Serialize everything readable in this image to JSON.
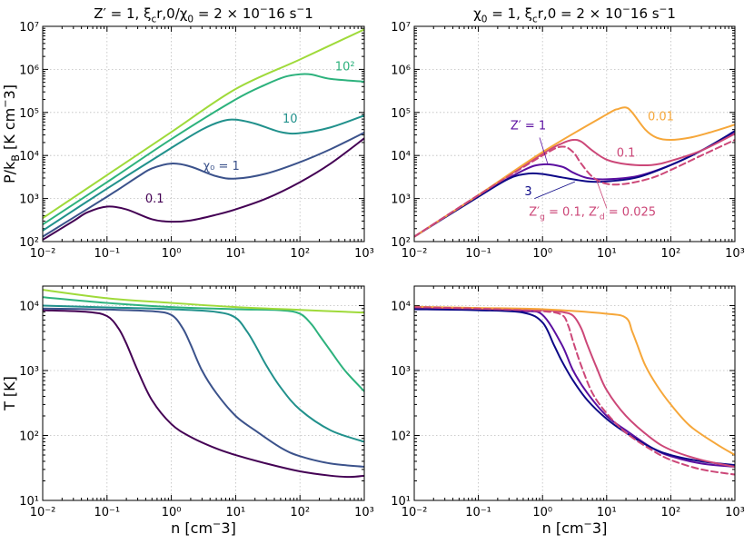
{
  "chart_data": [
    {
      "type": "line",
      "panel": "top-left",
      "title": "Z′ = 1, ξ_cr,0/χ_0 = 2 × 10^−16 s^−1",
      "ylabel": "P/k_B [K cm^−3]",
      "xlabel": "",
      "xscale": "log",
      "yscale": "log",
      "xlim": [
        0.01,
        1000
      ],
      "ylim": [
        100,
        10000000
      ],
      "grid": true,
      "series": [
        {
          "name": "χ_0 = 0.1",
          "label": "0.1",
          "color": "#440154",
          "x": [
            0.01,
            0.03,
            0.05,
            0.1,
            0.2,
            0.5,
            1,
            2,
            5,
            10,
            30,
            100,
            300,
            1000
          ],
          "y": [
            110,
            300,
            480,
            650,
            560,
            330,
            290,
            310,
            420,
            560,
            1000,
            2400,
            6500,
            25000
          ]
        },
        {
          "name": "χ_0 = 1",
          "label": "χ₀ = 1",
          "color": "#3b528b",
          "x": [
            0.01,
            0.1,
            0.3,
            0.5,
            1,
            2,
            5,
            10,
            30,
            100,
            300,
            1000
          ],
          "y": [
            130,
            1100,
            3200,
            5000,
            6500,
            5500,
            3300,
            2900,
            3800,
            7000,
            14000,
            34000
          ]
        },
        {
          "name": "χ_0 = 10",
          "label": "10",
          "color": "#21918c",
          "x": [
            0.01,
            0.1,
            1,
            3,
            6,
            10,
            20,
            50,
            100,
            300,
            1000
          ],
          "y": [
            180,
            1700,
            15000,
            40000,
            62000,
            68000,
            55000,
            35000,
            33000,
            45000,
            85000
          ]
        },
        {
          "name": "χ_0 = 10^2",
          "label": "10²",
          "color": "#2db27d",
          "x": [
            0.01,
            0.1,
            1,
            10,
            30,
            60,
            100,
            150,
            300,
            1000
          ],
          "y": [
            250,
            2400,
            24000,
            200000,
            450000,
            680000,
            770000,
            760000,
            600000,
            520000
          ]
        },
        {
          "name": "χ_0 = 10^3",
          "label": "",
          "color": "#9fda3a",
          "x": [
            0.01,
            0.1,
            1,
            10,
            100,
            1000
          ],
          "y": [
            350,
            3500,
            35000,
            350000,
            1700000,
            8500000
          ]
        }
      ],
      "annotations": [
        {
          "text": "0.1",
          "x": 0.55,
          "y": 800
        },
        {
          "text": "χ₀ = 1",
          "x": 6,
          "y": 4600
        },
        {
          "text": "10",
          "x": 70,
          "y": 58000
        },
        {
          "text": "10²",
          "x": 500,
          "y": 950000
        }
      ]
    },
    {
      "type": "line",
      "panel": "top-right",
      "title": "χ_0 = 1, ξ_cr,0 = 2 × 10^−16 s^−1",
      "ylabel": "",
      "xlabel": "",
      "xscale": "log",
      "yscale": "log",
      "xlim": [
        0.01,
        1000
      ],
      "ylim": [
        100,
        10000000
      ],
      "grid": true,
      "series": [
        {
          "name": "Z′ = 1",
          "label": "Z′ = 1",
          "color": "#5b0fa0",
          "dash": false,
          "x": [
            0.01,
            0.1,
            0.5,
            1,
            2,
            3,
            5,
            10,
            30,
            100,
            300,
            1000
          ],
          "y": [
            130,
            1150,
            4500,
            6200,
            5500,
            4000,
            3000,
            2800,
            3300,
            6000,
            13000,
            33000
          ]
        },
        {
          "name": "Z′ = 3",
          "label": "3",
          "color": "#0d0887",
          "dash": false,
          "x": [
            0.01,
            0.1,
            0.3,
            0.6,
            1,
            2,
            5,
            10,
            30,
            100,
            300,
            1000
          ],
          "y": [
            130,
            1100,
            2900,
            3800,
            3700,
            3100,
            2500,
            2500,
            3100,
            6000,
            13000,
            37000
          ]
        },
        {
          "name": "Z′ = 0.1",
          "label": "0.1",
          "color": "#cc4778",
          "dash": false,
          "x": [
            0.01,
            0.1,
            1,
            2,
            3,
            4,
            6,
            10,
            20,
            50,
            100,
            300,
            1000
          ],
          "y": [
            130,
            1200,
            11000,
            19000,
            23000,
            21000,
            13000,
            8000,
            6300,
            6000,
            7500,
            13000,
            32000
          ]
        },
        {
          "name": "Z′ = 0.01",
          "label": "0.01",
          "color": "#f6a73a",
          "dash": false,
          "x": [
            0.01,
            0.1,
            1,
            10,
            15,
            20,
            25,
            40,
            60,
            100,
            200,
            400,
            1000
          ],
          "y": [
            130,
            1200,
            12000,
            90000,
            120000,
            130000,
            100000,
            40000,
            26000,
            23000,
            26000,
            34000,
            52000
          ]
        },
        {
          "name": "Z′_g = 0.1, Z′_d = 0.025",
          "label": "Z′_g = 0.1, Z′_d = 0.025",
          "color": "#cc4778",
          "dash": true,
          "x": [
            0.01,
            0.1,
            1,
            2,
            3,
            4,
            6,
            10,
            20,
            50,
            100,
            300,
            1000
          ],
          "y": [
            130,
            1200,
            10000,
            16000,
            12000,
            6500,
            3200,
            2200,
            2200,
            3000,
            4600,
            10000,
            23000
          ]
        }
      ],
      "annotations": [
        {
          "text": "0.01",
          "x": 70,
          "y": 65000
        },
        {
          "text": "0.1",
          "x": 20,
          "y": 9500
        },
        {
          "text": "Z′ = 1",
          "x": 0.6,
          "y": 40000
        },
        {
          "text": "3",
          "x": 0.6,
          "y": 1200
        },
        {
          "text": "Z′g = 0.1, Z′d = 0.025",
          "x": 6,
          "y": 400
        }
      ]
    },
    {
      "type": "line",
      "panel": "bottom-left",
      "title": "",
      "ylabel": "T [K]",
      "xlabel": "n [cm^−3]",
      "xscale": "log",
      "yscale": "log",
      "xlim": [
        0.01,
        1000
      ],
      "ylim": [
        10,
        20000
      ],
      "grid": true,
      "series": [
        {
          "name": "χ_0 = 0.1",
          "color": "#440154",
          "x": [
            0.01,
            0.05,
            0.1,
            0.15,
            0.2,
            0.3,
            0.5,
            1,
            2,
            5,
            10,
            30,
            100,
            300,
            600,
            1000
          ],
          "y": [
            8500,
            8000,
            6900,
            4500,
            2600,
            1000,
            350,
            150,
            95,
            63,
            50,
            37,
            28,
            24,
            23,
            24
          ]
        },
        {
          "name": "χ_0 = 1",
          "color": "#3b528b",
          "x": [
            0.01,
            0.1,
            0.5,
            1,
            1.5,
            2,
            3,
            5,
            10,
            20,
            50,
            100,
            300,
            1000
          ],
          "y": [
            9000,
            8700,
            8200,
            7200,
            4500,
            2500,
            1000,
            450,
            200,
            120,
            65,
            48,
            37,
            33
          ]
        },
        {
          "name": "χ_0 = 10",
          "color": "#21918c",
          "x": [
            0.01,
            0.1,
            1,
            5,
            10,
            15,
            20,
            30,
            50,
            100,
            300,
            1000
          ],
          "y": [
            10000,
            9400,
            8800,
            8000,
            6500,
            4000,
            2500,
            1200,
            550,
            250,
            120,
            80
          ]
        },
        {
          "name": "χ_0 = 10^2",
          "color": "#2db27d",
          "x": [
            0.01,
            0.1,
            1,
            10,
            50,
            100,
            150,
            200,
            300,
            500,
            1000
          ],
          "y": [
            13500,
            11000,
            9500,
            8800,
            8500,
            7500,
            5200,
            3500,
            2000,
            1000,
            480
          ]
        },
        {
          "name": "χ_0 = 10^3",
          "color": "#9fda3a",
          "x": [
            0.01,
            0.1,
            1,
            10,
            100,
            1000
          ],
          "y": [
            17500,
            13000,
            11000,
            9500,
            8600,
            7800
          ]
        }
      ]
    },
    {
      "type": "line",
      "panel": "bottom-right",
      "title": "",
      "ylabel": "",
      "xlabel": "n [cm^−3]",
      "xscale": "log",
      "yscale": "log",
      "xlim": [
        0.01,
        1000
      ],
      "ylim": [
        10,
        20000
      ],
      "grid": true,
      "series": [
        {
          "name": "Z′ = 1",
          "color": "#5b0fa0",
          "dash": false,
          "x": [
            0.01,
            0.1,
            0.5,
            1,
            2,
            3,
            5,
            10,
            20,
            50,
            100,
            300,
            1000
          ],
          "y": [
            9000,
            8700,
            8200,
            7200,
            2500,
            1000,
            450,
            200,
            120,
            65,
            48,
            37,
            33
          ]
        },
        {
          "name": "Z′ = 3",
          "color": "#0d0887",
          "dash": false,
          "x": [
            0.01,
            0.1,
            0.5,
            1,
            1.5,
            2,
            3,
            5,
            10,
            20,
            50,
            100,
            300,
            1000
          ],
          "y": [
            8800,
            8500,
            7800,
            5500,
            2500,
            1400,
            700,
            350,
            180,
            110,
            65,
            50,
            40,
            35
          ]
        },
        {
          "name": "Z′ = 0.1",
          "color": "#cc4778",
          "dash": false,
          "x": [
            0.01,
            0.1,
            1,
            2,
            3,
            4,
            5,
            7,
            10,
            20,
            50,
            100,
            300,
            1000
          ],
          "y": [
            9500,
            9000,
            8500,
            8000,
            7000,
            4500,
            2500,
            1100,
            500,
            200,
            90,
            60,
            42,
            33
          ]
        },
        {
          "name": "Z′ = 0.01",
          "color": "#f6a73a",
          "dash": false,
          "x": [
            0.01,
            0.1,
            1,
            10,
            20,
            25,
            30,
            40,
            60,
            100,
            200,
            500,
            1000
          ],
          "y": [
            9600,
            9200,
            8800,
            7500,
            6500,
            4000,
            2500,
            1200,
            600,
            300,
            140,
            75,
            50
          ]
        },
        {
          "name": "Z′_g = 0.1, Z′_d = 0.025",
          "color": "#cc4778",
          "dash": true,
          "x": [
            0.01,
            0.1,
            1,
            2,
            2.5,
            3,
            4,
            6,
            10,
            20,
            50,
            100,
            300,
            1000
          ],
          "y": [
            9500,
            9000,
            8200,
            7200,
            5000,
            2800,
            1200,
            450,
            220,
            110,
            60,
            42,
            30,
            25
          ]
        }
      ]
    }
  ],
  "tick_labels": {
    "x": [
      "10⁻²",
      "10⁻¹",
      "10⁰",
      "10¹",
      "10²",
      "10³"
    ],
    "y_top": [
      "10²",
      "10³",
      "10⁴",
      "10⁵",
      "10⁶",
      "10⁷"
    ],
    "y_bottom": [
      "10¹",
      "10²",
      "10³",
      "10⁴"
    ]
  }
}
